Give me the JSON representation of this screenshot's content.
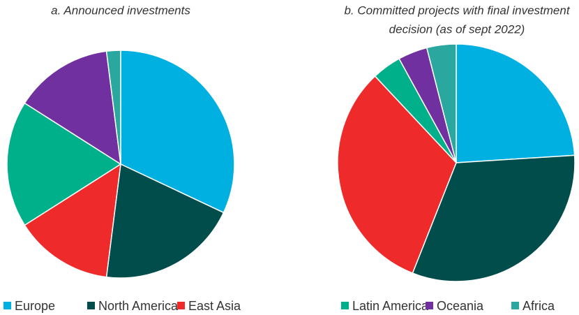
{
  "chart_data": [
    {
      "type": "pie",
      "title": [
        "a.  Announced investments"
      ],
      "categories": [
        "Europe",
        "North America",
        "East Asia",
        "Latin America",
        "Oceania",
        "Africa"
      ],
      "values": [
        32,
        20,
        14,
        18,
        14,
        2
      ],
      "colors": [
        "#00b0e0",
        "#004d4b",
        "#ee2a2a",
        "#00b08a",
        "#7030a0",
        "#2aa8a0"
      ]
    },
    {
      "type": "pie",
      "title": [
        "b. Committed projects with final investment",
        "decision (as of sept 2022)"
      ],
      "categories": [
        "Europe",
        "North America",
        "East Asia",
        "Latin America",
        "Oceania",
        "Africa"
      ],
      "values": [
        24,
        32,
        32,
        4,
        4,
        4
      ],
      "colors": [
        "#00b0e0",
        "#004d4b",
        "#ee2a2a",
        "#00b08a",
        "#7030a0",
        "#2aa8a0"
      ]
    }
  ]
}
